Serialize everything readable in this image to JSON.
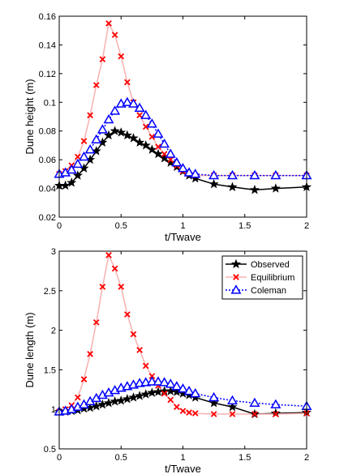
{
  "chart_data": [
    {
      "type": "line",
      "title": "",
      "xlabel": "t/Twave",
      "ylabel": "Dune height (m)",
      "xlim": [
        0,
        2
      ],
      "ylim": [
        0.02,
        0.16
      ],
      "xticks": [
        0,
        0.5,
        1,
        1.5,
        2
      ],
      "xtick_labels": [
        "0",
        "0.5",
        "1",
        "1.5",
        "2"
      ],
      "yticks": [
        0.02,
        0.04,
        0.06,
        0.08,
        0.1,
        0.12,
        0.14,
        0.16
      ],
      "ytick_labels": [
        "0.02",
        "0.04",
        "0.06",
        "0.08",
        "0.1",
        "0.12",
        "0.14",
        "0.16"
      ],
      "grid": false,
      "legend": "none",
      "series": [
        {
          "key": "observed",
          "color": "#000000",
          "marker": "star",
          "x": [
            0,
            0.05,
            0.1,
            0.15,
            0.2,
            0.25,
            0.3,
            0.35,
            0.4,
            0.45,
            0.5,
            0.55,
            0.6,
            0.65,
            0.7,
            0.75,
            0.8,
            0.85,
            0.9,
            0.95,
            1.0,
            1.05,
            1.1,
            1.25,
            1.4,
            1.58,
            1.75,
            2.0
          ],
          "y": [
            0.042,
            0.042,
            0.044,
            0.049,
            0.054,
            0.06,
            0.066,
            0.072,
            0.077,
            0.08,
            0.079,
            0.077,
            0.075,
            0.072,
            0.07,
            0.067,
            0.064,
            0.061,
            0.058,
            0.055,
            0.052,
            0.049,
            0.047,
            0.043,
            0.041,
            0.039,
            0.04,
            0.041
          ]
        },
        {
          "key": "equilibrium",
          "color": "#ff0000",
          "line_color": "#f7b0b0",
          "marker": "x",
          "x": [
            0,
            0.05,
            0.1,
            0.15,
            0.2,
            0.25,
            0.3,
            0.35,
            0.4,
            0.45,
            0.5,
            0.55,
            0.6,
            0.65,
            0.7,
            0.75,
            0.8,
            0.85,
            0.9,
            0.95,
            1.0,
            1.05,
            1.1,
            1.25,
            1.4,
            1.58,
            1.75,
            2.0
          ],
          "y": [
            0.05,
            0.052,
            0.056,
            0.062,
            0.073,
            0.091,
            0.112,
            0.13,
            0.155,
            0.147,
            0.132,
            0.114,
            0.1,
            0.091,
            0.083,
            0.076,
            0.069,
            0.064,
            0.06,
            0.056,
            0.052,
            0.05,
            0.049,
            0.049,
            0.049,
            0.049,
            0.049,
            0.049
          ]
        },
        {
          "key": "coleman",
          "color": "#0000ff",
          "marker": "triangle",
          "dashed": true,
          "x": [
            0,
            0.05,
            0.1,
            0.15,
            0.2,
            0.25,
            0.3,
            0.35,
            0.4,
            0.45,
            0.5,
            0.55,
            0.6,
            0.65,
            0.7,
            0.75,
            0.8,
            0.85,
            0.9,
            0.95,
            1.0,
            1.05,
            1.1,
            1.25,
            1.4,
            1.58,
            1.75,
            2.0
          ],
          "y": [
            0.05,
            0.051,
            0.053,
            0.057,
            0.062,
            0.067,
            0.074,
            0.081,
            0.088,
            0.094,
            0.099,
            0.1,
            0.099,
            0.096,
            0.091,
            0.085,
            0.078,
            0.071,
            0.064,
            0.058,
            0.054,
            0.051,
            0.05,
            0.049,
            0.049,
            0.049,
            0.049,
            0.049
          ]
        }
      ]
    },
    {
      "type": "line",
      "title": "",
      "xlabel": "t/Twave",
      "ylabel": "Dune length (m)",
      "xlim": [
        0,
        2
      ],
      "ylim": [
        0.5,
        3
      ],
      "xticks": [
        0,
        0.5,
        1,
        1.5,
        2
      ],
      "xtick_labels": [
        "0",
        "0.5",
        "1",
        "1.5",
        "2"
      ],
      "yticks": [
        0.5,
        1,
        1.5,
        2,
        2.5,
        3
      ],
      "ytick_labels": [
        "0.5",
        "1",
        "1.5",
        "2",
        "2.5",
        "3"
      ],
      "grid": false,
      "legend": "top-right",
      "series": [
        {
          "key": "observed",
          "name": "Observed",
          "color": "#000000",
          "marker": "star",
          "x": [
            0,
            0.05,
            0.1,
            0.15,
            0.2,
            0.25,
            0.3,
            0.35,
            0.4,
            0.45,
            0.5,
            0.55,
            0.6,
            0.65,
            0.7,
            0.75,
            0.8,
            0.85,
            0.9,
            0.95,
            1.0,
            1.05,
            1.1,
            1.25,
            1.4,
            1.58,
            1.75,
            2.0
          ],
          "y": [
            0.97,
            0.97,
            0.98,
            0.99,
            1.01,
            1.02,
            1.04,
            1.06,
            1.08,
            1.1,
            1.11,
            1.13,
            1.15,
            1.17,
            1.19,
            1.21,
            1.22,
            1.23,
            1.23,
            1.22,
            1.2,
            1.18,
            1.15,
            1.08,
            1.03,
            0.94,
            0.95,
            0.96
          ]
        },
        {
          "key": "equilibrium",
          "name": "Equilibrium",
          "color": "#ff0000",
          "line_color": "#f7b0b0",
          "marker": "x",
          "x": [
            0,
            0.05,
            0.1,
            0.15,
            0.2,
            0.25,
            0.3,
            0.35,
            0.4,
            0.45,
            0.5,
            0.55,
            0.6,
            0.65,
            0.7,
            0.75,
            0.8,
            0.85,
            0.9,
            0.95,
            1.0,
            1.05,
            1.1,
            1.25,
            1.4,
            1.58,
            1.75,
            2.0
          ],
          "y": [
            0.97,
            1.0,
            1.05,
            1.15,
            1.38,
            1.7,
            2.1,
            2.55,
            2.95,
            2.78,
            2.55,
            2.2,
            1.95,
            1.75,
            1.55,
            1.42,
            1.3,
            1.2,
            1.12,
            1.03,
            0.98,
            0.96,
            0.95,
            0.94,
            0.94,
            0.94,
            0.94,
            0.95
          ]
        },
        {
          "key": "coleman",
          "name": "Coleman",
          "color": "#0000ff",
          "marker": "triangle",
          "dashed": true,
          "x": [
            0,
            0.05,
            0.1,
            0.15,
            0.2,
            0.25,
            0.3,
            0.35,
            0.4,
            0.45,
            0.5,
            0.55,
            0.6,
            0.65,
            0.7,
            0.75,
            0.8,
            0.85,
            0.9,
            0.95,
            1.0,
            1.05,
            1.1,
            1.25,
            1.4,
            1.58,
            1.75,
            2.0
          ],
          "y": [
            0.97,
            0.98,
            1.0,
            1.03,
            1.06,
            1.1,
            1.14,
            1.18,
            1.21,
            1.24,
            1.27,
            1.29,
            1.31,
            1.33,
            1.34,
            1.35,
            1.35,
            1.34,
            1.32,
            1.29,
            1.26,
            1.23,
            1.2,
            1.15,
            1.11,
            1.08,
            1.06,
            1.04
          ]
        }
      ]
    }
  ]
}
